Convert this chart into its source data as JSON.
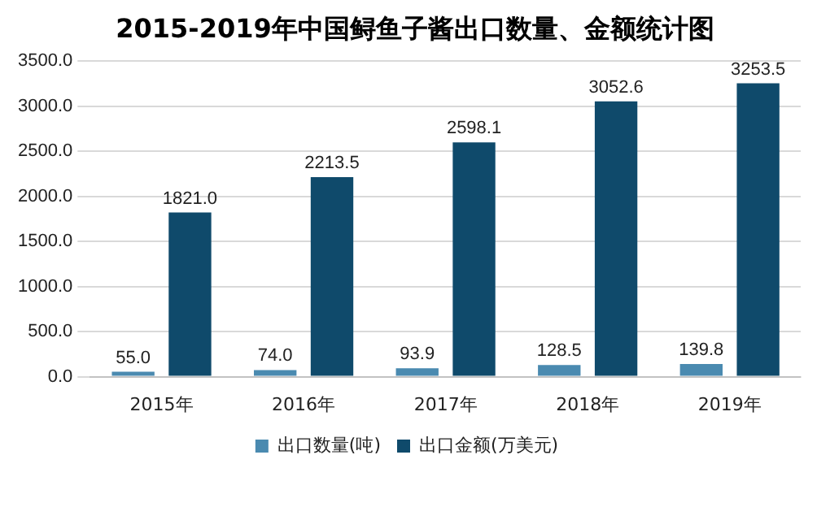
{
  "chart_data": {
    "type": "bar",
    "title": "2015-2019年中国鲟鱼子酱出口数量、金额统计图",
    "categories": [
      "2015年",
      "2016年",
      "2017年",
      "2018年",
      "2019年"
    ],
    "series": [
      {
        "name": "出口数量(吨)",
        "color": "#4a8ab0",
        "values": [
          55.0,
          74.0,
          93.9,
          128.5,
          139.8
        ],
        "value_labels": [
          "55.0",
          "74.0",
          "93.9",
          "128.5",
          "139.8"
        ]
      },
      {
        "name": "出口金额(万美元)",
        "color": "#0f4a6b",
        "values": [
          1821.0,
          2213.5,
          2598.1,
          3052.6,
          3253.5
        ],
        "value_labels": [
          "1821.0",
          "2213.5",
          "2598.1",
          "3052.6",
          "3253.5"
        ]
      }
    ],
    "ylim": [
      0,
      3500
    ],
    "yticks": [
      {
        "value": 0,
        "label": "0.0"
      },
      {
        "value": 500,
        "label": "500.0"
      },
      {
        "value": 1000,
        "label": "1000.0"
      },
      {
        "value": 1500,
        "label": "1500.0"
      },
      {
        "value": 2000,
        "label": "2000.0"
      },
      {
        "value": 2500,
        "label": "2500.0"
      },
      {
        "value": 3000,
        "label": "3000.0"
      },
      {
        "value": 3500,
        "label": "3500.0"
      }
    ],
    "grid": "y",
    "legend": "bottom"
  }
}
